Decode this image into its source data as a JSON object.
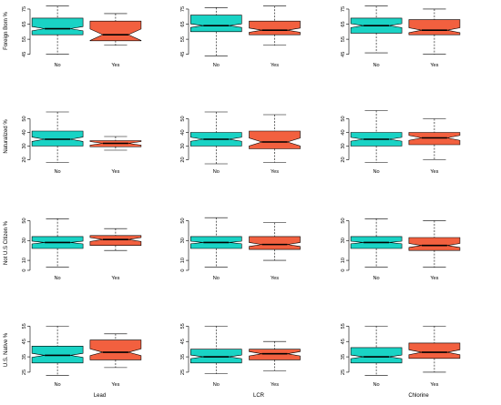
{
  "colors": {
    "no": "#19d3c5",
    "yes": "#f2603f",
    "stroke": "#000000"
  },
  "chart_data": {
    "type": "boxplot",
    "notched": true,
    "categories": [
      "No",
      "Yes"
    ],
    "column_titles": [
      "Lead",
      "LCR",
      "Chlorine"
    ],
    "rows": [
      {
        "ylabel": "Foreign Born %",
        "ylim": [
          43,
          78
        ],
        "yticks": [
          45,
          55,
          65,
          75
        ],
        "panels": [
          [
            {
              "min": 45,
              "q1": 58,
              "median": 62,
              "q3": 69,
              "max": 77,
              "notch": [
                60.6,
                63.4
              ]
            },
            {
              "min": 51,
              "q1": 54,
              "median": 58,
              "q3": 67,
              "max": 72,
              "notch": [
                54.2,
                61.8
              ]
            }
          ],
          [
            {
              "min": 44,
              "q1": 60,
              "median": 64,
              "q3": 71,
              "max": 76,
              "notch": [
                62.8,
                65.2
              ]
            },
            {
              "min": 51,
              "q1": 58,
              "median": 61,
              "q3": 67,
              "max": 77,
              "notch": [
                59.6,
                62.4
              ]
            }
          ],
          [
            {
              "min": 46,
              "q1": 59,
              "median": 64,
              "q3": 69,
              "max": 77,
              "notch": [
                62.7,
                65.3
              ]
            },
            {
              "min": 45,
              "q1": 58,
              "median": 61,
              "q3": 68,
              "max": 75,
              "notch": [
                59.4,
                62.6
              ]
            }
          ]
        ]
      },
      {
        "ylabel": "Naturalized %",
        "ylim": [
          17,
          57
        ],
        "yticks": [
          20,
          30,
          40,
          50
        ],
        "panels": [
          [
            {
              "min": 18,
              "q1": 30,
              "median": 35,
              "q3": 41,
              "max": 55,
              "notch": [
                33.4,
                36.6
              ]
            },
            {
              "min": 27,
              "q1": 29.5,
              "median": 32,
              "q3": 34,
              "max": 37,
              "notch": [
                30.7,
                33.3
              ]
            }
          ],
          [
            {
              "min": 17,
              "q1": 30,
              "median": 35,
              "q3": 40,
              "max": 55,
              "notch": [
                33.5,
                36.5
              ]
            },
            {
              "min": 18,
              "q1": 28,
              "median": 33,
              "q3": 41,
              "max": 53,
              "notch": [
                30.1,
                35.9
              ]
            }
          ],
          [
            {
              "min": 18,
              "q1": 30,
              "median": 35,
              "q3": 40,
              "max": 56,
              "notch": [
                33.6,
                36.4
              ]
            },
            {
              "min": 20,
              "q1": 31,
              "median": 36,
              "q3": 40,
              "max": 50,
              "notch": [
                34.2,
                37.8
              ]
            }
          ]
        ]
      },
      {
        "ylabel": "Not U.S Citizen %",
        "ylim": [
          0,
          55
        ],
        "yticks": [
          0,
          10,
          30,
          50
        ],
        "panels": [
          [
            {
              "min": 3,
              "q1": 22,
              "median": 28,
              "q3": 34,
              "max": 52,
              "notch": [
                26.6,
                29.4
              ]
            },
            {
              "min": 20,
              "q1": 25,
              "median": 31,
              "q3": 35,
              "max": 42,
              "notch": [
                29,
                33
              ]
            }
          ],
          [
            {
              "min": 3,
              "q1": 22,
              "median": 28,
              "q3": 34,
              "max": 53,
              "notch": [
                26.7,
                29.3
              ]
            },
            {
              "min": 10,
              "q1": 21,
              "median": 26,
              "q3": 34,
              "max": 48,
              "notch": [
                24,
                28
              ]
            }
          ],
          [
            {
              "min": 3,
              "q1": 22,
              "median": 28,
              "q3": 34,
              "max": 52,
              "notch": [
                26.7,
                29.3
              ]
            },
            {
              "min": 3,
              "q1": 20,
              "median": 25,
              "q3": 33,
              "max": 50,
              "notch": [
                23,
                27
              ]
            }
          ]
        ]
      },
      {
        "ylabel": "U.S. Native %",
        "ylim": [
          22,
          57
        ],
        "yticks": [
          25,
          35,
          45,
          55
        ],
        "panels": [
          [
            {
              "min": 23,
              "q1": 31,
              "median": 36,
              "q3": 42,
              "max": 55,
              "notch": [
                34.7,
                37.3
              ]
            },
            {
              "min": 28,
              "q1": 33,
              "median": 38,
              "q3": 46,
              "max": 50,
              "notch": [
                35.8,
                40.2
              ]
            }
          ],
          [
            {
              "min": 24,
              "q1": 31,
              "median": 35,
              "q3": 40,
              "max": 55,
              "notch": [
                33.8,
                36.2
              ]
            },
            {
              "min": 26,
              "q1": 33,
              "median": 37,
              "q3": 40,
              "max": 45,
              "notch": [
                35.6,
                38.4
              ]
            }
          ],
          [
            {
              "min": 23,
              "q1": 31,
              "median": 35,
              "q3": 41,
              "max": 55,
              "notch": [
                33.8,
                36.2
              ]
            },
            {
              "min": 25,
              "q1": 34,
              "median": 38,
              "q3": 44,
              "max": 55,
              "notch": [
                36.4,
                39.6
              ]
            }
          ]
        ]
      }
    ]
  }
}
